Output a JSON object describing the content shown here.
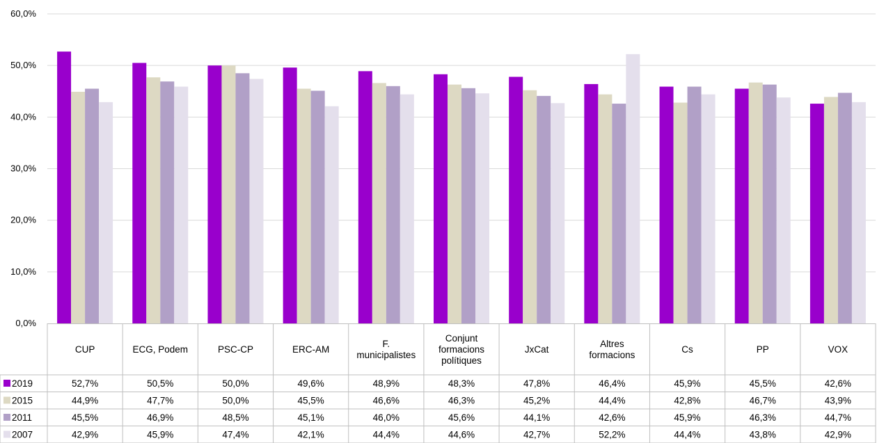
{
  "chart_data": {
    "type": "bar",
    "categories": [
      [
        "CUP"
      ],
      [
        "ECG, Podem"
      ],
      [
        "PSC-CP"
      ],
      [
        "ERC-AM"
      ],
      [
        "F.",
        "municipalistes"
      ],
      [
        "Conjunt",
        "formacions",
        "polítiques"
      ],
      [
        "JxCat"
      ],
      [
        "Altres",
        "formacions"
      ],
      [
        "Cs"
      ],
      [
        "PP"
      ],
      [
        "VOX"
      ]
    ],
    "series": [
      {
        "name": "2019",
        "color": "#9900cc",
        "values": [
          52.7,
          50.5,
          50.0,
          49.6,
          48.9,
          48.3,
          47.8,
          46.4,
          45.9,
          45.5,
          42.6
        ],
        "labels": [
          "52,7%",
          "50,5%",
          "50,0%",
          "49,6%",
          "48,9%",
          "48,3%",
          "47,8%",
          "46,4%",
          "45,9%",
          "45,5%",
          "42,6%"
        ]
      },
      {
        "name": "2015",
        "color": "#ddd9c3",
        "values": [
          44.9,
          47.7,
          50.0,
          45.5,
          46.6,
          46.3,
          45.2,
          44.4,
          42.8,
          46.7,
          43.9
        ],
        "labels": [
          "44,9%",
          "47,7%",
          "50,0%",
          "45,5%",
          "46,6%",
          "46,3%",
          "45,2%",
          "44,4%",
          "42,8%",
          "46,7%",
          "43,9%"
        ]
      },
      {
        "name": "2011",
        "color": "#b1a0c7",
        "values": [
          45.5,
          46.9,
          48.5,
          45.1,
          46.0,
          45.6,
          44.1,
          42.6,
          45.9,
          46.3,
          44.7
        ],
        "labels": [
          "45,5%",
          "46,9%",
          "48,5%",
          "45,1%",
          "46,0%",
          "45,6%",
          "44,1%",
          "42,6%",
          "45,9%",
          "46,3%",
          "44,7%"
        ]
      },
      {
        "name": "2007",
        "color": "#e4dfec",
        "values": [
          42.9,
          45.9,
          47.4,
          42.1,
          44.4,
          44.6,
          42.7,
          52.2,
          44.4,
          43.8,
          42.9
        ],
        "labels": [
          "42,9%",
          "45,9%",
          "47,4%",
          "42,1%",
          "44,4%",
          "44,6%",
          "42,7%",
          "52,2%",
          "44,4%",
          "43,8%",
          "42,9%"
        ]
      }
    ],
    "ylim": [
      0,
      60
    ],
    "yticks": [
      "0,0%",
      "10,0%",
      "20,0%",
      "30,0%",
      "40,0%",
      "50,0%",
      "60,0%"
    ],
    "grid": true,
    "legend": "data-table"
  }
}
